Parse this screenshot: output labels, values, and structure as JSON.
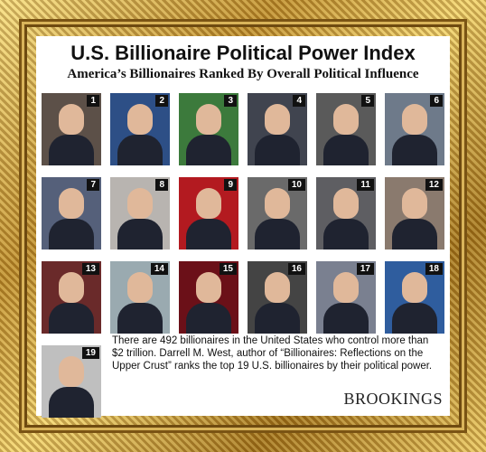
{
  "title": "U.S. Billionaire Political Power Index",
  "subtitle": "America’s Billionaires Ranked By Overall Political Influence",
  "ranks": [
    "1",
    "2",
    "3",
    "4",
    "5",
    "6",
    "7",
    "8",
    "9",
    "10",
    "11",
    "12",
    "13",
    "14",
    "15",
    "16",
    "17",
    "18",
    "19"
  ],
  "photo_colors": [
    "#5c5048",
    "#2d4f86",
    "#3c7a3c",
    "#40444f",
    "#5a5a5a",
    "#6e7a8a",
    "#55607a",
    "#b8b4b0",
    "#b31a20",
    "#6a6a6a",
    "#5e5e62",
    "#8a7a6e",
    "#6a2a2a",
    "#9aaab0",
    "#6b1018",
    "#444444",
    "#7a8090",
    "#2f5d9e",
    "#bfbfbf"
  ],
  "description": "There are 492 billionaires in the United States who control more than $2 trillion. Darrell M. West, author of “Billionaires: Reflections on the Upper Crust” ranks the top 19 U.S. billionaires by their political power.",
  "brand": "BROOKINGS"
}
